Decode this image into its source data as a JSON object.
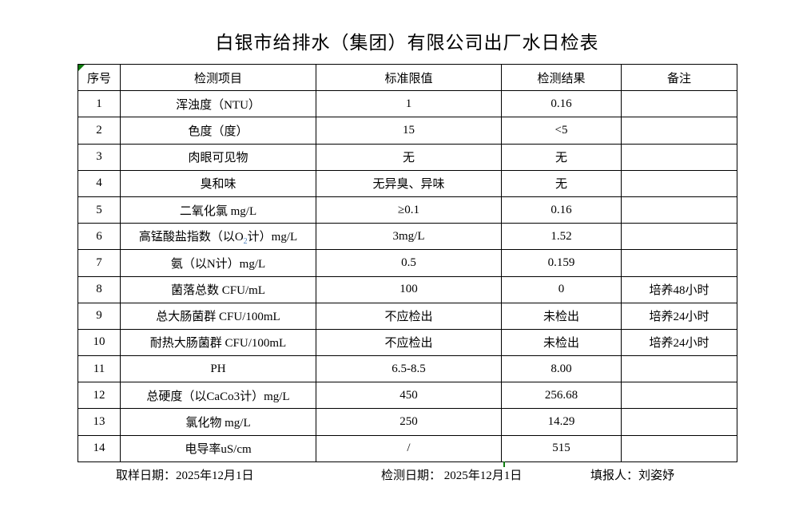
{
  "title": "白银市给排水（集团）有限公司出厂水日检表",
  "table": {
    "headers": [
      "序号",
      "检测项目",
      "标准限值",
      "检测结果",
      "备注"
    ],
    "rows": [
      {
        "no": "1",
        "item": "浑浊度（NTU）",
        "limit": "1",
        "result": "0.16",
        "remark": ""
      },
      {
        "no": "2",
        "item": "色度（度）",
        "limit": "15",
        "result": "<5",
        "remark": ""
      },
      {
        "no": "3",
        "item": "肉眼可见物",
        "limit": "无",
        "result": "无",
        "remark": ""
      },
      {
        "no": "4",
        "item": "臭和味",
        "limit": "无异臭、异味",
        "result": "无",
        "remark": ""
      },
      {
        "no": "5",
        "item": "二氧化氯 mg/L",
        "limit": "≥0.1",
        "result": "0.16",
        "remark": ""
      },
      {
        "no": "6",
        "item_pre": "高锰酸盐指数（以O",
        "item_sub": "2",
        "item_post": "计）mg/L",
        "limit": "3mg/L",
        "result": "1.52",
        "remark": ""
      },
      {
        "no": "7",
        "item": "氨（以N计）mg/L",
        "limit": "0.5",
        "result": "0.159",
        "remark": ""
      },
      {
        "no": "8",
        "item": "菌落总数 CFU/mL",
        "limit": "100",
        "result": "0",
        "remark": "培养48小时"
      },
      {
        "no": "9",
        "item": "总大肠菌群 CFU/100mL",
        "limit": "不应检出",
        "result": "未检出",
        "remark": "培养24小时"
      },
      {
        "no": "10",
        "item": "耐热大肠菌群 CFU/100mL",
        "limit": "不应检出",
        "result": "未检出",
        "remark": "培养24小时"
      },
      {
        "no": "11",
        "item": "PH",
        "limit": "6.5-8.5",
        "result": "8.00",
        "remark": ""
      },
      {
        "no": "12",
        "item": "总硬度（以CaCo3计）mg/L",
        "limit": "450",
        "result": "256.68",
        "remark": ""
      },
      {
        "no": "13",
        "item": "氯化物 mg/L",
        "limit": "250",
        "result": "14.29",
        "remark": ""
      },
      {
        "no": "14",
        "item": "电导率uS/cm",
        "limit": "/",
        "result": "515",
        "remark": ""
      }
    ]
  },
  "footer": {
    "sampling_label": "取样日期：",
    "sampling_date": "2025年12月1日",
    "test_label": "检测日期：",
    "test_date": " 2025年12月1日",
    "reporter_label": "填报人：",
    "reporter_name": "刘姿妤"
  },
  "markers": {
    "corner_triangle_color": "#0f7b0f",
    "page_break_tick_color": "#0f7b0f",
    "subscript_color": "#4a7ebb",
    "border_color": "#000000"
  }
}
